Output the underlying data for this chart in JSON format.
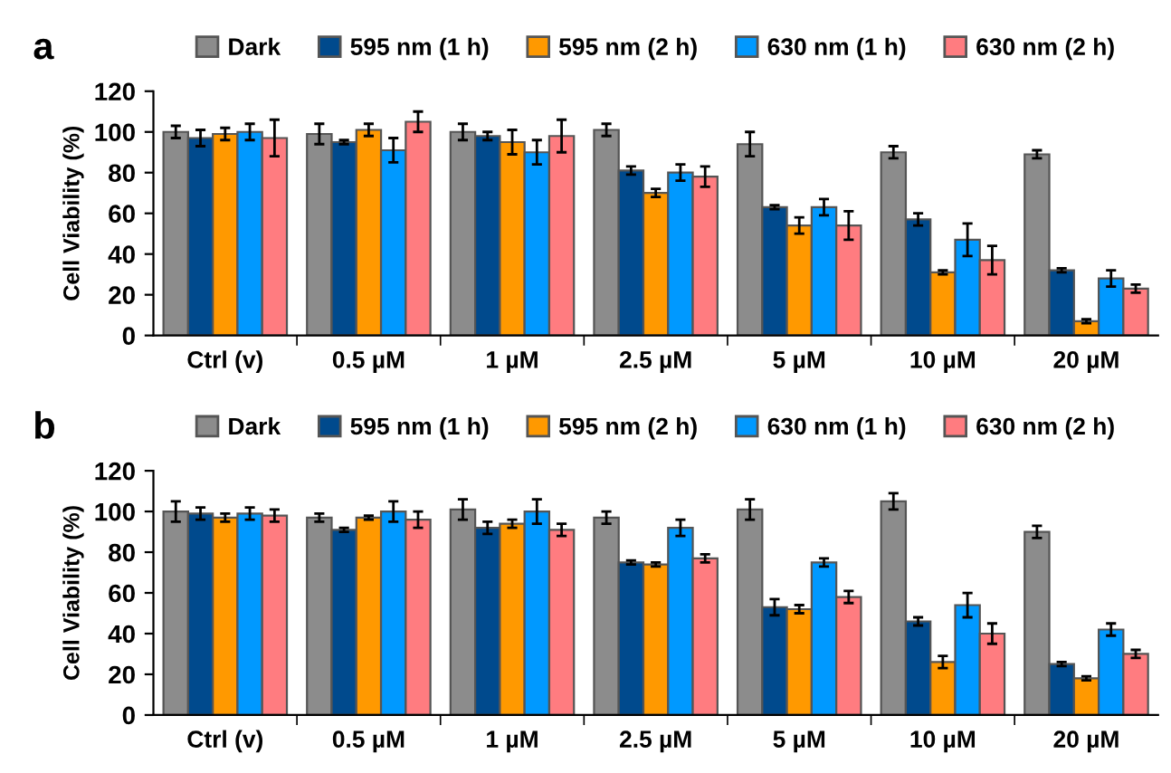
{
  "chart_data": [
    {
      "type": "bar",
      "title": "a",
      "ylabel": "Cell Viability (%)",
      "categories": [
        "Ctrl (v)",
        "0.5 µM",
        "1 µM",
        "2.5 µM",
        "5 µM",
        "10 µM",
        "20 µM"
      ],
      "ylim": [
        0,
        120
      ],
      "yticks": [
        0,
        20,
        40,
        60,
        80,
        100,
        120
      ],
      "grid": false,
      "legend": "top",
      "series": [
        {
          "name": "Dark",
          "color": "#8c8c8c",
          "values": [
            100,
            99,
            100,
            101,
            94,
            90,
            89
          ],
          "errors": [
            3,
            5,
            4,
            3,
            6,
            3,
            2
          ]
        },
        {
          "name": "595 nm (1 h)",
          "color": "#004a8d",
          "values": [
            97,
            95,
            98,
            81,
            63,
            57,
            32
          ],
          "errors": [
            4,
            1,
            2,
            2,
            1,
            3,
            1
          ]
        },
        {
          "name": "595 nm (2 h)",
          "color": "#ff9900",
          "values": [
            99,
            101,
            95,
            70,
            54,
            31,
            7
          ],
          "errors": [
            3,
            3,
            6,
            2,
            4,
            1,
            1
          ]
        },
        {
          "name": "630 nm (1 h)",
          "color": "#0099ff",
          "values": [
            100,
            91,
            90,
            80,
            63,
            47,
            28
          ],
          "errors": [
            4,
            6,
            6,
            4,
            4,
            8,
            4
          ]
        },
        {
          "name": "630 nm (2 h)",
          "color": "#ff7c80",
          "values": [
            97,
            105,
            98,
            78,
            54,
            37,
            23
          ],
          "errors": [
            9,
            5,
            8,
            5,
            7,
            7,
            2
          ]
        }
      ]
    },
    {
      "type": "bar",
      "title": "b",
      "ylabel": "Cell Viability (%)",
      "categories": [
        "Ctrl (v)",
        "0.5 µM",
        "1 µM",
        "2.5 µM",
        "5 µM",
        "10 µM",
        "20 µM"
      ],
      "ylim": [
        0,
        120
      ],
      "yticks": [
        0,
        20,
        40,
        60,
        80,
        100,
        120
      ],
      "grid": false,
      "legend": "top",
      "series": [
        {
          "name": "Dark",
          "color": "#8c8c8c",
          "values": [
            100,
            97,
            101,
            97,
            101,
            105,
            90
          ],
          "errors": [
            5,
            2,
            5,
            3,
            5,
            4,
            3
          ]
        },
        {
          "name": "595 nm (1 h)",
          "color": "#004a8d",
          "values": [
            99,
            91,
            92,
            75,
            53,
            46,
            25
          ],
          "errors": [
            3,
            1,
            3,
            1,
            4,
            2,
            1
          ]
        },
        {
          "name": "595 nm (2 h)",
          "color": "#ff9900",
          "values": [
            97,
            97,
            94,
            74,
            52,
            26,
            18
          ],
          "errors": [
            2,
            1,
            2,
            1,
            2,
            3,
            1
          ]
        },
        {
          "name": "630 nm (1 h)",
          "color": "#0099ff",
          "values": [
            99,
            100,
            100,
            92,
            75,
            54,
            42
          ],
          "errors": [
            3,
            5,
            6,
            4,
            2,
            6,
            3
          ]
        },
        {
          "name": "630 nm (2 h)",
          "color": "#ff7c80",
          "values": [
            98,
            96,
            91,
            77,
            58,
            40,
            30
          ],
          "errors": [
            3,
            4,
            3,
            2,
            3,
            5,
            2
          ]
        }
      ]
    }
  ]
}
